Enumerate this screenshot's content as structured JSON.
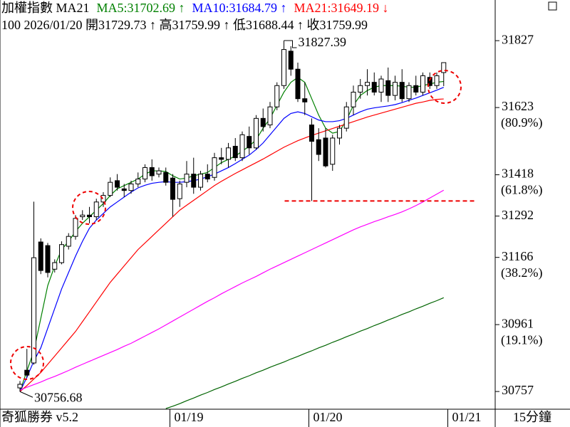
{
  "chart_data": {
    "type": "candlestick",
    "title": "加權指數 MA21",
    "info": "100 2026/01/20 開31729.73 ↑ 高31759.99 ↑ 低31688.44 ↑ 收31759.99",
    "footer_left": "奇狐勝券 v5.2",
    "footer_right": "15分鐘",
    "ylim": [
      30703,
      31951
    ],
    "yticks": [
      31827,
      31623,
      31418,
      31292,
      31166,
      30961,
      30757
    ],
    "fib_labels": [
      {
        "value": 31623,
        "label": "(80.9%)"
      },
      {
        "value": 31418,
        "label": "(61.8%)"
      },
      {
        "value": 31166,
        "label": "(38.2%)"
      },
      {
        "value": 30961,
        "label": "(19.1%)"
      }
    ],
    "categories": [
      null,
      null,
      null,
      null,
      null,
      null,
      null,
      null,
      null,
      null,
      null,
      null,
      null,
      null,
      null,
      null,
      null,
      null,
      null,
      null,
      null,
      null,
      "01/19",
      null,
      null,
      null,
      null,
      null,
      null,
      null,
      null,
      null,
      null,
      null,
      null,
      null,
      null,
      null,
      null,
      null,
      null,
      null,
      "01/20",
      null,
      null,
      null,
      null,
      null,
      null,
      null,
      null,
      null,
      null,
      null,
      null,
      null,
      null,
      null,
      null,
      null,
      null,
      null,
      "01/21"
    ],
    "open": [
      30768,
      30822,
      30844,
      31213,
      31202,
      31130,
      31150,
      31200,
      31230,
      31290,
      31295,
      31290,
      31335,
      31355,
      31400,
      31375,
      31370,
      31390,
      31405,
      31440,
      31420,
      31425,
      31408,
      31345,
      31395,
      31420,
      31380,
      31420,
      31410,
      31470,
      31465,
      31505,
      31470,
      31535,
      31500,
      31590,
      31570,
      31625,
      31690,
      31795,
      31740,
      31650,
      31570,
      31525,
      31530,
      31450,
      31530,
      31560,
      31625,
      31670,
      31690,
      31700,
      31670,
      31705,
      31660,
      31700,
      31650,
      31690,
      31670,
      31715,
      31690,
      31729.73,
      null
    ],
    "high": [
      30789,
      30887,
      31336,
      31224,
      31210,
      31160,
      31215,
      31240,
      31295,
      31310,
      31320,
      31345,
      31365,
      31410,
      31420,
      31390,
      31400,
      31425,
      31450,
      31465,
      31440,
      31440,
      31420,
      31400,
      31460,
      31470,
      31430,
      31450,
      31485,
      31500,
      31515,
      31530,
      31550,
      31565,
      31600,
      31620,
      31640,
      31700,
      31827.39,
      31810,
      31760,
      31700,
      31590,
      31560,
      31560,
      31540,
      31570,
      31640,
      31690,
      31710,
      31740,
      31730,
      31720,
      31745,
      31720,
      31740,
      31700,
      31720,
      31730,
      31730,
      31730,
      31759.99,
      null
    ],
    "low": [
      30756.68,
      30800,
      30839,
      31115,
      31105,
      31120,
      31145,
      31190,
      31220,
      31280,
      31270,
      31280,
      31320,
      31350,
      31370,
      31350,
      31360,
      31380,
      31395,
      31400,
      31410,
      31385,
      31290,
      31320,
      31380,
      31360,
      31370,
      31395,
      31400,
      31450,
      31440,
      31460,
      31460,
      31480,
      31495,
      31550,
      31560,
      31615,
      31680,
      31720,
      31640,
      31600,
      31338,
      31460,
      31440,
      31430,
      31510,
      31550,
      31600,
      31650,
      31660,
      31660,
      31640,
      31640,
      31645,
      31640,
      31640,
      31660,
      31660,
      31680,
      31680,
      31688.44,
      null
    ],
    "close": [
      30779,
      30807,
      31165,
      31126,
      31120,
      31150,
      31205,
      31230,
      31285,
      31295,
      31290,
      31335,
      31355,
      31395,
      31380,
      31370,
      31390,
      31405,
      31440,
      31415,
      31430,
      31395,
      31343,
      31390,
      31420,
      31380,
      31420,
      31405,
      31470,
      31465,
      31500,
      31470,
      31540,
      31500,
      31590,
      31565,
      31625,
      31690,
      31800,
      31740,
      31650,
      31640,
      31520,
      31480,
      31445,
      31530,
      31560,
      31625,
      31670,
      31690,
      31700,
      31670,
      31710,
      31660,
      31700,
      31650,
      31690,
      31670,
      31720,
      31690,
      31720,
      31759.99,
      null
    ],
    "series": [
      {
        "name": "MA5:31702.69 ↑",
        "color": "#008000",
        "values": [
          30757,
          30820,
          30880,
          30980,
          31080,
          31140,
          31190,
          31215,
          31245,
          31270,
          31290,
          31310,
          31330,
          31355,
          31375,
          31385,
          31395,
          31405,
          31420,
          31430,
          31430,
          31428,
          31415,
          31405,
          31408,
          31415,
          31420,
          31425,
          31440,
          31455,
          31465,
          31475,
          31490,
          31505,
          31525,
          31560,
          31590,
          31630,
          31670,
          31700,
          31715,
          31700,
          31650,
          31600,
          31560,
          31545,
          31550,
          31585,
          31630,
          31660,
          31675,
          31685,
          31690,
          31690,
          31690,
          31688,
          31685,
          31685,
          31690,
          31695,
          31700,
          31702.69,
          null
        ]
      },
      {
        "name": "MA10:31684.79 ↑",
        "color": "#0000ff",
        "values": [
          30757,
          30800,
          30850,
          30890,
          30950,
          31010,
          31070,
          31120,
          31170,
          31215,
          31255,
          31280,
          31300,
          31320,
          31335,
          31350,
          31365,
          31378,
          31386,
          31392,
          31395,
          31397,
          31395,
          31395,
          31397,
          31400,
          31405,
          31412,
          31420,
          31430,
          31440,
          31452,
          31465,
          31478,
          31495,
          31515,
          31540,
          31565,
          31590,
          31605,
          31610,
          31605,
          31595,
          31585,
          31580,
          31580,
          31583,
          31590,
          31600,
          31610,
          31618,
          31622,
          31625,
          31628,
          31632,
          31638,
          31645,
          31652,
          31660,
          31668,
          31676,
          31684.79,
          null
        ]
      },
      {
        "name": "MA21:31649.19 ↓",
        "color": "#ff0000",
        "values": [
          30757,
          30775,
          30795,
          30815,
          30840,
          30865,
          30890,
          30915,
          30940,
          30970,
          31000,
          31030,
          31060,
          31090,
          31115,
          31140,
          31165,
          31190,
          31210,
          31230,
          31250,
          31270,
          31290,
          31310,
          31325,
          31340,
          31355,
          31370,
          31385,
          31398,
          31410,
          31422,
          31433,
          31444,
          31455,
          31466,
          31478,
          31490,
          31502,
          31512,
          31522,
          31530,
          31538,
          31545,
          31552,
          31559,
          31566,
          31573,
          31580,
          31587,
          31594,
          31600,
          31606,
          31612,
          31618,
          31624,
          31630,
          31636,
          31640,
          31645,
          31648,
          31649.19,
          null
        ]
      },
      {
        "color": "#ff00ff",
        "values": [
          30761,
          30770,
          30778,
          30786,
          30795,
          30803,
          30812,
          30821,
          30831,
          30840,
          30849,
          30858,
          30867,
          30876,
          30885,
          30895,
          30904,
          30915,
          30926,
          30937,
          30948,
          30960,
          30972,
          30984,
          30996,
          31008,
          31020,
          31032,
          31043,
          31055,
          31066,
          31077,
          31088,
          31098,
          31108,
          31119,
          31130,
          31140,
          31150,
          31160,
          31170,
          31180,
          31190,
          31200,
          31210,
          31220,
          31230,
          31240,
          31250,
          31259,
          31267,
          31275,
          31282,
          31290,
          31297,
          31305,
          31314,
          31324,
          31335,
          31347,
          31359,
          31371,
          null
        ]
      },
      {
        "color": "#006400",
        "values": [
          null,
          null,
          null,
          null,
          null,
          null,
          null,
          null,
          null,
          null,
          null,
          null,
          null,
          null,
          null,
          null,
          null,
          null,
          null,
          null,
          null,
          30705,
          30712,
          30720,
          30729,
          30737,
          30746,
          30754,
          30763,
          30771,
          30780,
          30788,
          30797,
          30805,
          30814,
          30822,
          30831,
          30839,
          30847,
          30856,
          30864,
          30873,
          30881,
          30890,
          30898,
          30907,
          30915,
          30924,
          30932,
          30941,
          30949,
          30958,
          30966,
          30975,
          30983,
          30992,
          31000,
          31009,
          31017,
          31026,
          31034,
          31043,
          null
        ]
      }
    ]
  }
}
